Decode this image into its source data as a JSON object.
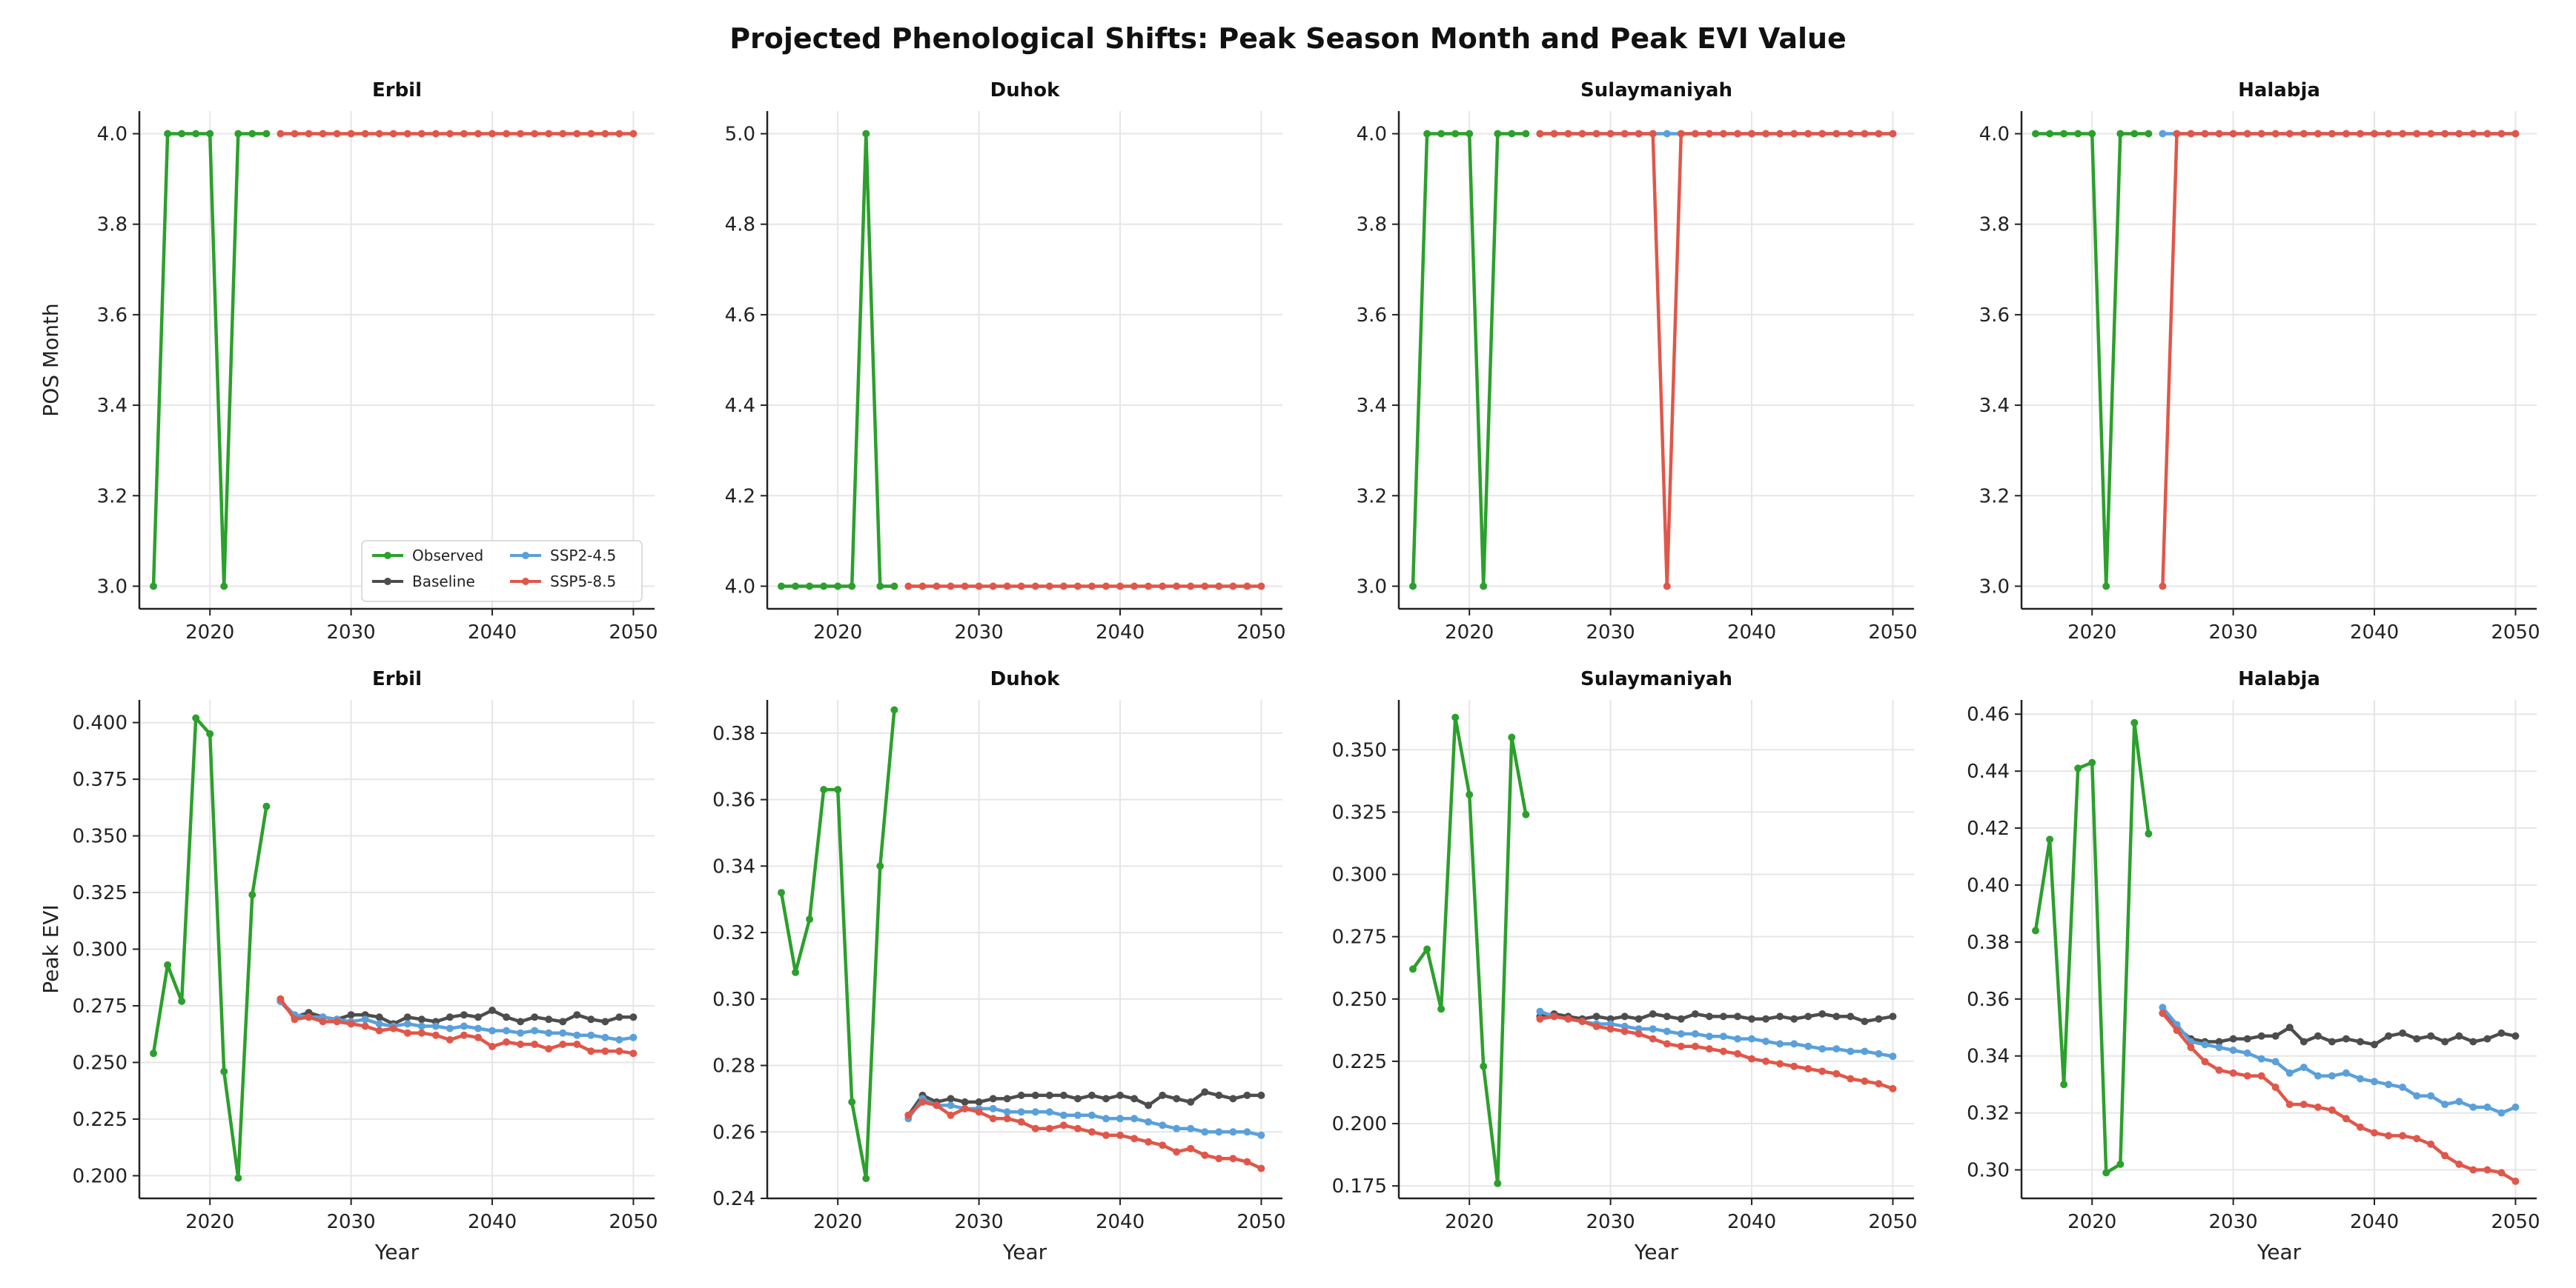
{
  "figure": {
    "title": "Projected Phenological Shifts: Peak Season Month and Peak EVI Value"
  },
  "colors": {
    "Observed": "#2ca02c",
    "Baseline": "#4d4d4d",
    "SSP2-4.5": "#5aa0db",
    "SSP5-8.5": "#e0574a",
    "grid": "#e6e6e6",
    "axis": "#222222"
  },
  "legend": {
    "entries": [
      "Observed",
      "Baseline",
      "SSP2-4.5",
      "SSP5-8.5"
    ],
    "placement": "lower-right of first panel"
  },
  "chart_data": [
    {
      "type": "line",
      "title": "Erbil",
      "xlabel": "",
      "ylabel": "POS Month",
      "xlim": [
        2015,
        2051.5
      ],
      "ylim": [
        2.95,
        4.05
      ],
      "xticks": [
        2020,
        2030,
        2040,
        2050
      ],
      "yticks": [
        3.0,
        3.2,
        3.4,
        3.6,
        3.8,
        4.0
      ],
      "ytick_labels": [
        "3.0",
        "3.2",
        "3.4",
        "3.6",
        "3.8",
        "4.0"
      ],
      "series": [
        {
          "name": "Observed",
          "x": [
            2016,
            2017,
            2018,
            2019,
            2020,
            2021,
            2022,
            2023,
            2024
          ],
          "y": [
            3,
            4,
            4,
            4,
            4,
            3,
            4,
            4,
            4
          ]
        },
        {
          "name": "SSP5-8.5",
          "x0": 2025,
          "y": [
            4,
            4,
            4,
            4,
            4,
            4,
            4,
            4,
            4,
            4,
            4,
            4,
            4,
            4,
            4,
            4,
            4,
            4,
            4,
            4,
            4,
            4,
            4,
            4,
            4,
            4
          ]
        }
      ]
    },
    {
      "type": "line",
      "title": "Duhok",
      "xlabel": "",
      "ylabel": "",
      "xlim": [
        2015,
        2051.5
      ],
      "ylim": [
        3.95,
        5.05
      ],
      "xticks": [
        2020,
        2030,
        2040,
        2050
      ],
      "yticks": [
        4.0,
        4.2,
        4.4,
        4.6,
        4.8,
        5.0
      ],
      "ytick_labels": [
        "4.0",
        "4.2",
        "4.4",
        "4.6",
        "4.8",
        "5.0"
      ],
      "series": [
        {
          "name": "Observed",
          "x": [
            2016,
            2017,
            2018,
            2019,
            2020,
            2021,
            2022,
            2023,
            2024
          ],
          "y": [
            4,
            4,
            4,
            4,
            4,
            4,
            5,
            4,
            4
          ]
        },
        {
          "name": "SSP5-8.5",
          "x0": 2025,
          "y": [
            4,
            4,
            4,
            4,
            4,
            4,
            4,
            4,
            4,
            4,
            4,
            4,
            4,
            4,
            4,
            4,
            4,
            4,
            4,
            4,
            4,
            4,
            4,
            4,
            4,
            4
          ]
        }
      ]
    },
    {
      "type": "line",
      "title": "Sulaymaniyah",
      "xlabel": "",
      "ylabel": "",
      "xlim": [
        2015,
        2051.5
      ],
      "ylim": [
        2.95,
        4.05
      ],
      "xticks": [
        2020,
        2030,
        2040,
        2050
      ],
      "yticks": [
        3.0,
        3.2,
        3.4,
        3.6,
        3.8,
        4.0
      ],
      "ytick_labels": [
        "3.0",
        "3.2",
        "3.4",
        "3.6",
        "3.8",
        "4.0"
      ],
      "series": [
        {
          "name": "Observed",
          "x": [
            2016,
            2017,
            2018,
            2019,
            2020,
            2021,
            2022,
            2023,
            2024
          ],
          "y": [
            3,
            4,
            4,
            4,
            4,
            3,
            4,
            4,
            4
          ]
        },
        {
          "name": "SSP2-4.5",
          "x0": 2025,
          "y": [
            4,
            4,
            4,
            4,
            4,
            4,
            4,
            4,
            4,
            4,
            4,
            4,
            4,
            4,
            4,
            4,
            4,
            4,
            4,
            4,
            4,
            4,
            4,
            4,
            4,
            4
          ]
        },
        {
          "name": "SSP5-8.5",
          "x0": 2025,
          "y": [
            4,
            4,
            4,
            4,
            4,
            4,
            4,
            4,
            4,
            3,
            4,
            4,
            4,
            4,
            4,
            4,
            4,
            4,
            4,
            4,
            4,
            4,
            4,
            4,
            4,
            4
          ]
        }
      ]
    },
    {
      "type": "line",
      "title": "Halabja",
      "xlabel": "",
      "ylabel": "",
      "xlim": [
        2015,
        2051.5
      ],
      "ylim": [
        2.95,
        4.05
      ],
      "xticks": [
        2020,
        2030,
        2040,
        2050
      ],
      "yticks": [
        3.0,
        3.2,
        3.4,
        3.6,
        3.8,
        4.0
      ],
      "ytick_labels": [
        "3.0",
        "3.2",
        "3.4",
        "3.6",
        "3.8",
        "4.0"
      ],
      "series": [
        {
          "name": "Observed",
          "x": [
            2016,
            2017,
            2018,
            2019,
            2020,
            2021,
            2022,
            2023,
            2024
          ],
          "y": [
            4,
            4,
            4,
            4,
            4,
            3,
            4,
            4,
            4
          ]
        },
        {
          "name": "SSP2-4.5",
          "x0": 2025,
          "y": [
            4,
            4,
            4,
            4,
            4,
            4,
            4,
            4,
            4,
            4,
            4,
            4,
            4,
            4,
            4,
            4,
            4,
            4,
            4,
            4,
            4,
            4,
            4,
            4,
            4,
            4
          ]
        },
        {
          "name": "SSP5-8.5",
          "x0": 2025,
          "y": [
            3,
            4,
            4,
            4,
            4,
            4,
            4,
            4,
            4,
            4,
            4,
            4,
            4,
            4,
            4,
            4,
            4,
            4,
            4,
            4,
            4,
            4,
            4,
            4,
            4,
            4
          ]
        }
      ]
    },
    {
      "type": "line",
      "title": "Erbil",
      "xlabel": "Year",
      "ylabel": "Peak EVI",
      "xlim": [
        2015,
        2051.5
      ],
      "ylim": [
        0.19,
        0.41
      ],
      "xticks": [
        2020,
        2030,
        2040,
        2050
      ],
      "yticks": [
        0.2,
        0.225,
        0.25,
        0.275,
        0.3,
        0.325,
        0.35,
        0.375,
        0.4
      ],
      "ytick_labels": [
        "0.200",
        "0.225",
        "0.250",
        "0.275",
        "0.300",
        "0.325",
        "0.350",
        "0.375",
        "0.400"
      ],
      "series": [
        {
          "name": "Observed",
          "x": [
            2016,
            2017,
            2018,
            2019,
            2020,
            2021,
            2022,
            2023,
            2024
          ],
          "y": [
            0.254,
            0.293,
            0.277,
            0.402,
            0.395,
            0.246,
            0.199,
            0.324,
            0.363
          ]
        },
        {
          "name": "Baseline",
          "x0": 2025,
          "y": [
            0.277,
            0.27,
            0.272,
            0.27,
            0.269,
            0.271,
            0.271,
            0.27,
            0.267,
            0.27,
            0.269,
            0.268,
            0.27,
            0.271,
            0.27,
            0.273,
            0.27,
            0.268,
            0.27,
            0.269,
            0.268,
            0.271,
            0.269,
            0.268,
            0.27,
            0.27
          ]
        },
        {
          "name": "SSP2-4.5",
          "x0": 2025,
          "y": [
            0.277,
            0.271,
            0.27,
            0.27,
            0.269,
            0.268,
            0.269,
            0.267,
            0.266,
            0.267,
            0.266,
            0.266,
            0.265,
            0.266,
            0.265,
            0.264,
            0.264,
            0.263,
            0.264,
            0.263,
            0.263,
            0.262,
            0.262,
            0.261,
            0.26,
            0.261
          ]
        },
        {
          "name": "SSP5-8.5",
          "x0": 2025,
          "y": [
            0.278,
            0.269,
            0.27,
            0.268,
            0.268,
            0.267,
            0.266,
            0.264,
            0.265,
            0.263,
            0.263,
            0.262,
            0.26,
            0.262,
            0.261,
            0.257,
            0.259,
            0.258,
            0.258,
            0.256,
            0.258,
            0.258,
            0.255,
            0.255,
            0.255,
            0.254
          ]
        }
      ]
    },
    {
      "type": "line",
      "title": "Duhok",
      "xlabel": "Year",
      "ylabel": "",
      "xlim": [
        2015,
        2051.5
      ],
      "ylim": [
        0.24,
        0.39
      ],
      "xticks": [
        2020,
        2030,
        2040,
        2050
      ],
      "yticks": [
        0.24,
        0.26,
        0.28,
        0.3,
        0.32,
        0.34,
        0.36,
        0.38
      ],
      "ytick_labels": [
        "0.24",
        "0.26",
        "0.28",
        "0.30",
        "0.32",
        "0.34",
        "0.36",
        "0.38"
      ],
      "series": [
        {
          "name": "Observed",
          "x": [
            2016,
            2017,
            2018,
            2019,
            2020,
            2021,
            2022,
            2023,
            2024
          ],
          "y": [
            0.332,
            0.308,
            0.324,
            0.363,
            0.363,
            0.269,
            0.246,
            0.34,
            0.387
          ]
        },
        {
          "name": "Baseline",
          "x0": 2025,
          "y": [
            0.265,
            0.271,
            0.269,
            0.27,
            0.269,
            0.269,
            0.27,
            0.27,
            0.271,
            0.271,
            0.271,
            0.271,
            0.27,
            0.271,
            0.27,
            0.271,
            0.27,
            0.268,
            0.271,
            0.27,
            0.269,
            0.272,
            0.271,
            0.27,
            0.271,
            0.271
          ]
        },
        {
          "name": "SSP2-4.5",
          "x0": 2025,
          "y": [
            0.264,
            0.27,
            0.268,
            0.268,
            0.267,
            0.267,
            0.267,
            0.266,
            0.266,
            0.266,
            0.266,
            0.265,
            0.265,
            0.265,
            0.264,
            0.264,
            0.264,
            0.263,
            0.262,
            0.261,
            0.261,
            0.26,
            0.26,
            0.26,
            0.26,
            0.259
          ]
        },
        {
          "name": "SSP5-8.5",
          "x0": 2025,
          "y": [
            0.265,
            0.269,
            0.268,
            0.265,
            0.267,
            0.266,
            0.264,
            0.264,
            0.263,
            0.261,
            0.261,
            0.262,
            0.261,
            0.26,
            0.259,
            0.259,
            0.258,
            0.257,
            0.256,
            0.254,
            0.255,
            0.253,
            0.252,
            0.252,
            0.251,
            0.249
          ]
        }
      ]
    },
    {
      "type": "line",
      "title": "Sulaymaniyah",
      "xlabel": "Year",
      "ylabel": "",
      "xlim": [
        2015,
        2051.5
      ],
      "ylim": [
        0.17,
        0.37
      ],
      "xticks": [
        2020,
        2030,
        2040,
        2050
      ],
      "yticks": [
        0.175,
        0.2,
        0.225,
        0.25,
        0.275,
        0.3,
        0.325,
        0.35
      ],
      "ytick_labels": [
        "0.175",
        "0.200",
        "0.225",
        "0.250",
        "0.275",
        "0.300",
        "0.325",
        "0.350"
      ],
      "series": [
        {
          "name": "Observed",
          "x": [
            2016,
            2017,
            2018,
            2019,
            2020,
            2021,
            2022,
            2023,
            2024
          ],
          "y": [
            0.262,
            0.27,
            0.246,
            0.363,
            0.332,
            0.223,
            0.176,
            0.355,
            0.324
          ]
        },
        {
          "name": "Baseline",
          "x0": 2025,
          "y": [
            0.243,
            0.244,
            0.243,
            0.242,
            0.243,
            0.242,
            0.243,
            0.242,
            0.244,
            0.243,
            0.242,
            0.244,
            0.243,
            0.243,
            0.243,
            0.242,
            0.242,
            0.243,
            0.242,
            0.243,
            0.244,
            0.243,
            0.243,
            0.241,
            0.242,
            0.243
          ]
        },
        {
          "name": "SSP2-4.5",
          "x0": 2025,
          "y": [
            0.245,
            0.243,
            0.242,
            0.241,
            0.24,
            0.24,
            0.239,
            0.238,
            0.238,
            0.237,
            0.236,
            0.236,
            0.235,
            0.235,
            0.234,
            0.234,
            0.233,
            0.232,
            0.232,
            0.231,
            0.23,
            0.23,
            0.229,
            0.229,
            0.228,
            0.227
          ]
        },
        {
          "name": "SSP5-8.5",
          "x0": 2025,
          "y": [
            0.242,
            0.243,
            0.242,
            0.241,
            0.239,
            0.238,
            0.237,
            0.236,
            0.234,
            0.232,
            0.231,
            0.231,
            0.23,
            0.229,
            0.228,
            0.226,
            0.225,
            0.224,
            0.223,
            0.222,
            0.221,
            0.22,
            0.218,
            0.217,
            0.216,
            0.214
          ]
        }
      ]
    },
    {
      "type": "line",
      "title": "Halabja",
      "xlabel": "Year",
      "ylabel": "",
      "xlim": [
        2015,
        2051.5
      ],
      "ylim": [
        0.29,
        0.465
      ],
      "xticks": [
        2020,
        2030,
        2040,
        2050
      ],
      "yticks": [
        0.3,
        0.32,
        0.34,
        0.36,
        0.38,
        0.4,
        0.42,
        0.44,
        0.46
      ],
      "ytick_labels": [
        "0.30",
        "0.32",
        "0.34",
        "0.36",
        "0.38",
        "0.40",
        "0.42",
        "0.44",
        "0.46"
      ],
      "series": [
        {
          "name": "Observed",
          "x": [
            2016,
            2017,
            2018,
            2019,
            2020,
            2021,
            2022,
            2023,
            2024
          ],
          "y": [
            0.384,
            0.416,
            0.33,
            0.441,
            0.443,
            0.299,
            0.302,
            0.457,
            0.418
          ]
        },
        {
          "name": "Baseline",
          "x0": 2025,
          "y": [
            0.355,
            0.35,
            0.346,
            0.345,
            0.345,
            0.346,
            0.346,
            0.347,
            0.347,
            0.35,
            0.345,
            0.347,
            0.345,
            0.346,
            0.345,
            0.344,
            0.347,
            0.348,
            0.346,
            0.347,
            0.345,
            0.347,
            0.345,
            0.346,
            0.348,
            0.347
          ]
        },
        {
          "name": "SSP2-4.5",
          "x0": 2025,
          "y": [
            0.357,
            0.351,
            0.345,
            0.344,
            0.343,
            0.342,
            0.341,
            0.339,
            0.338,
            0.334,
            0.336,
            0.333,
            0.333,
            0.334,
            0.332,
            0.331,
            0.33,
            0.329,
            0.326,
            0.326,
            0.323,
            0.324,
            0.322,
            0.322,
            0.32,
            0.322
          ]
        },
        {
          "name": "SSP5-8.5",
          "x0": 2025,
          "y": [
            0.355,
            0.349,
            0.343,
            0.338,
            0.335,
            0.334,
            0.333,
            0.333,
            0.329,
            0.323,
            0.323,
            0.322,
            0.321,
            0.318,
            0.315,
            0.313,
            0.312,
            0.312,
            0.311,
            0.309,
            0.305,
            0.302,
            0.3,
            0.3,
            0.299,
            0.296
          ]
        }
      ]
    }
  ]
}
